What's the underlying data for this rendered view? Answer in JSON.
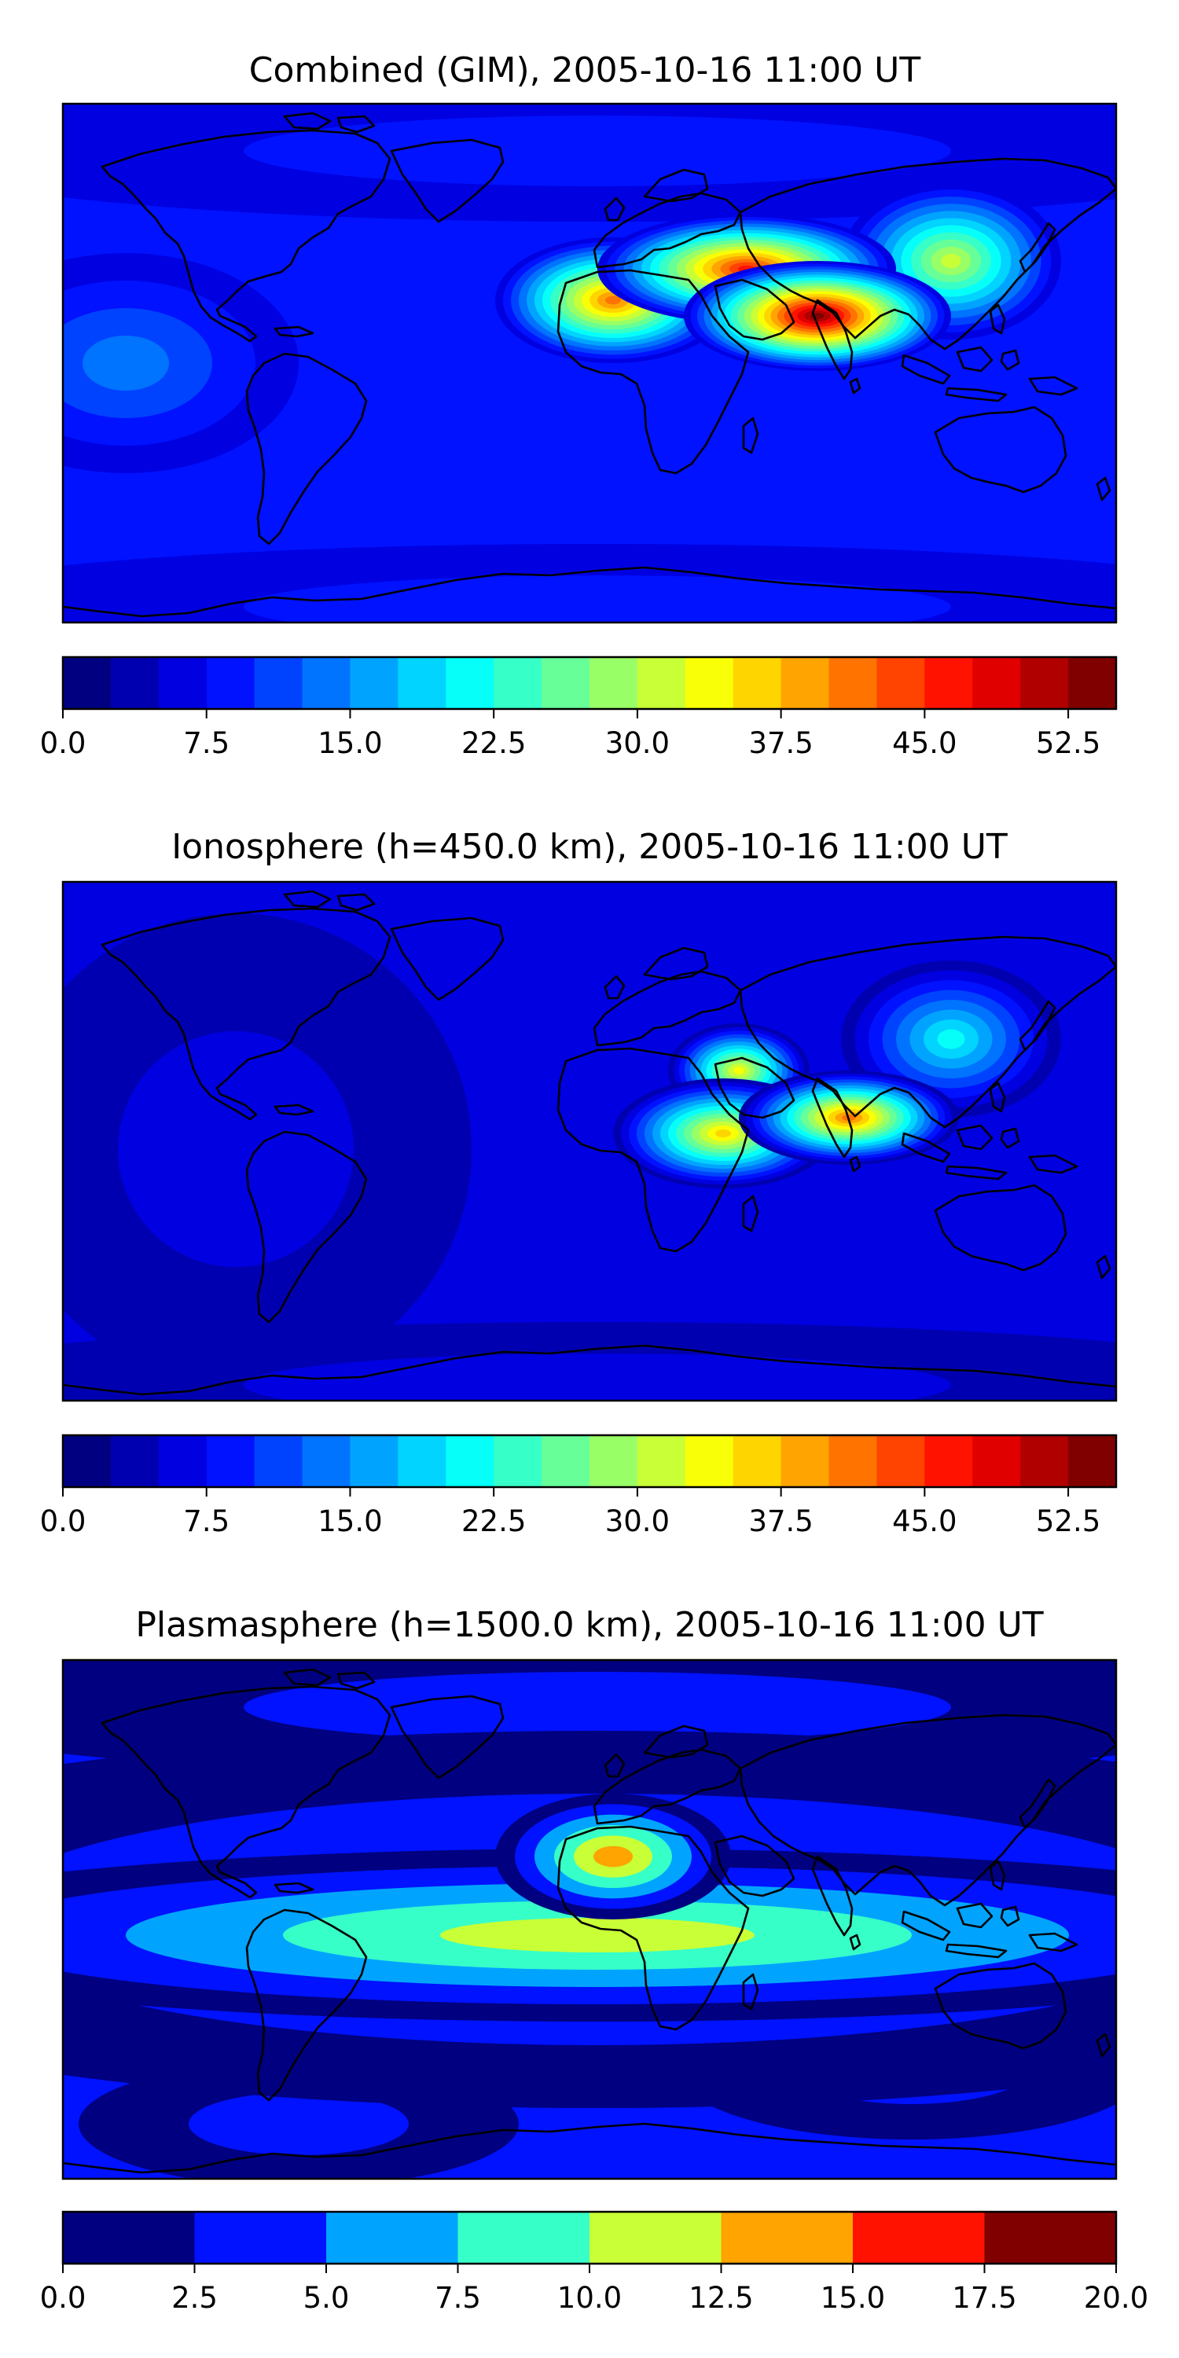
{
  "chart_data": [
    {
      "type": "heatmap",
      "title": "Combined (GIM), 2005-10-16 11:00 UT",
      "colorbar": {
        "ticks": [
          "0.0",
          "7.5",
          "15.0",
          "22.5",
          "30.0",
          "37.5",
          "45.0",
          "52.5"
        ],
        "range": [
          0,
          55
        ],
        "levels": 22,
        "level_step": 2.5
      },
      "field_features": [
        {
          "region": "Northern Arabia / Red Sea",
          "value": 47
        },
        {
          "region": "East Africa / Indian Ocean",
          "value": 54
        },
        {
          "region": "Central Africa",
          "value": 41
        },
        {
          "region": "Southeast Asia",
          "value": 31
        },
        {
          "region": "Eastern Pacific",
          "value": 14
        },
        {
          "region": "Arctic",
          "value": 5
        },
        {
          "region": "Antarctic",
          "value": 8
        }
      ],
      "grid": false,
      "legend": "colorbar-bottom"
    },
    {
      "type": "heatmap",
      "title": "Ionosphere  (h=450.0 km), 2005-10-16 11:00 UT",
      "colorbar": {
        "ticks": [
          "0.0",
          "7.5",
          "15.0",
          "22.5",
          "30.0",
          "37.5",
          "45.0",
          "52.5"
        ],
        "range": [
          0,
          55
        ],
        "levels": 22,
        "level_step": 2.5
      },
      "field_features": [
        {
          "region": "Arabian Peninsula",
          "value": 34
        },
        {
          "region": "Indian Ocean",
          "value": 42
        },
        {
          "region": "East Africa",
          "value": 36
        },
        {
          "region": "Southeast Asia",
          "value": 21
        },
        {
          "region": "Pacific / Americas",
          "value": 3
        },
        {
          "region": "Antarctic",
          "value": 4
        }
      ],
      "grid": false,
      "legend": "colorbar-bottom"
    },
    {
      "type": "heatmap",
      "title": "Plasmasphere (h=1500.0 km), 2005-10-16 11:00 UT",
      "colorbar": {
        "ticks": [
          "0.0",
          "2.5",
          "5.0",
          "7.5",
          "10.0",
          "12.5",
          "15.0",
          "17.5",
          "20.0"
        ],
        "range": [
          0,
          20
        ],
        "levels": 8,
        "level_step": 2.5
      },
      "field_features": [
        {
          "region": "Central Africa",
          "value": 13
        },
        {
          "region": "Equatorial band",
          "value": 10
        },
        {
          "region": "Mid-latitudes",
          "value": 6
        },
        {
          "region": "Arctic",
          "value": 1.5
        },
        {
          "region": "Southern Pacific",
          "value": 1.5
        },
        {
          "region": "Southern Indian Ocean",
          "value": 1.5
        }
      ],
      "grid": false,
      "legend": "colorbar-bottom"
    }
  ],
  "colors": {
    "colormap": "jet",
    "coastlines": "#000000"
  }
}
